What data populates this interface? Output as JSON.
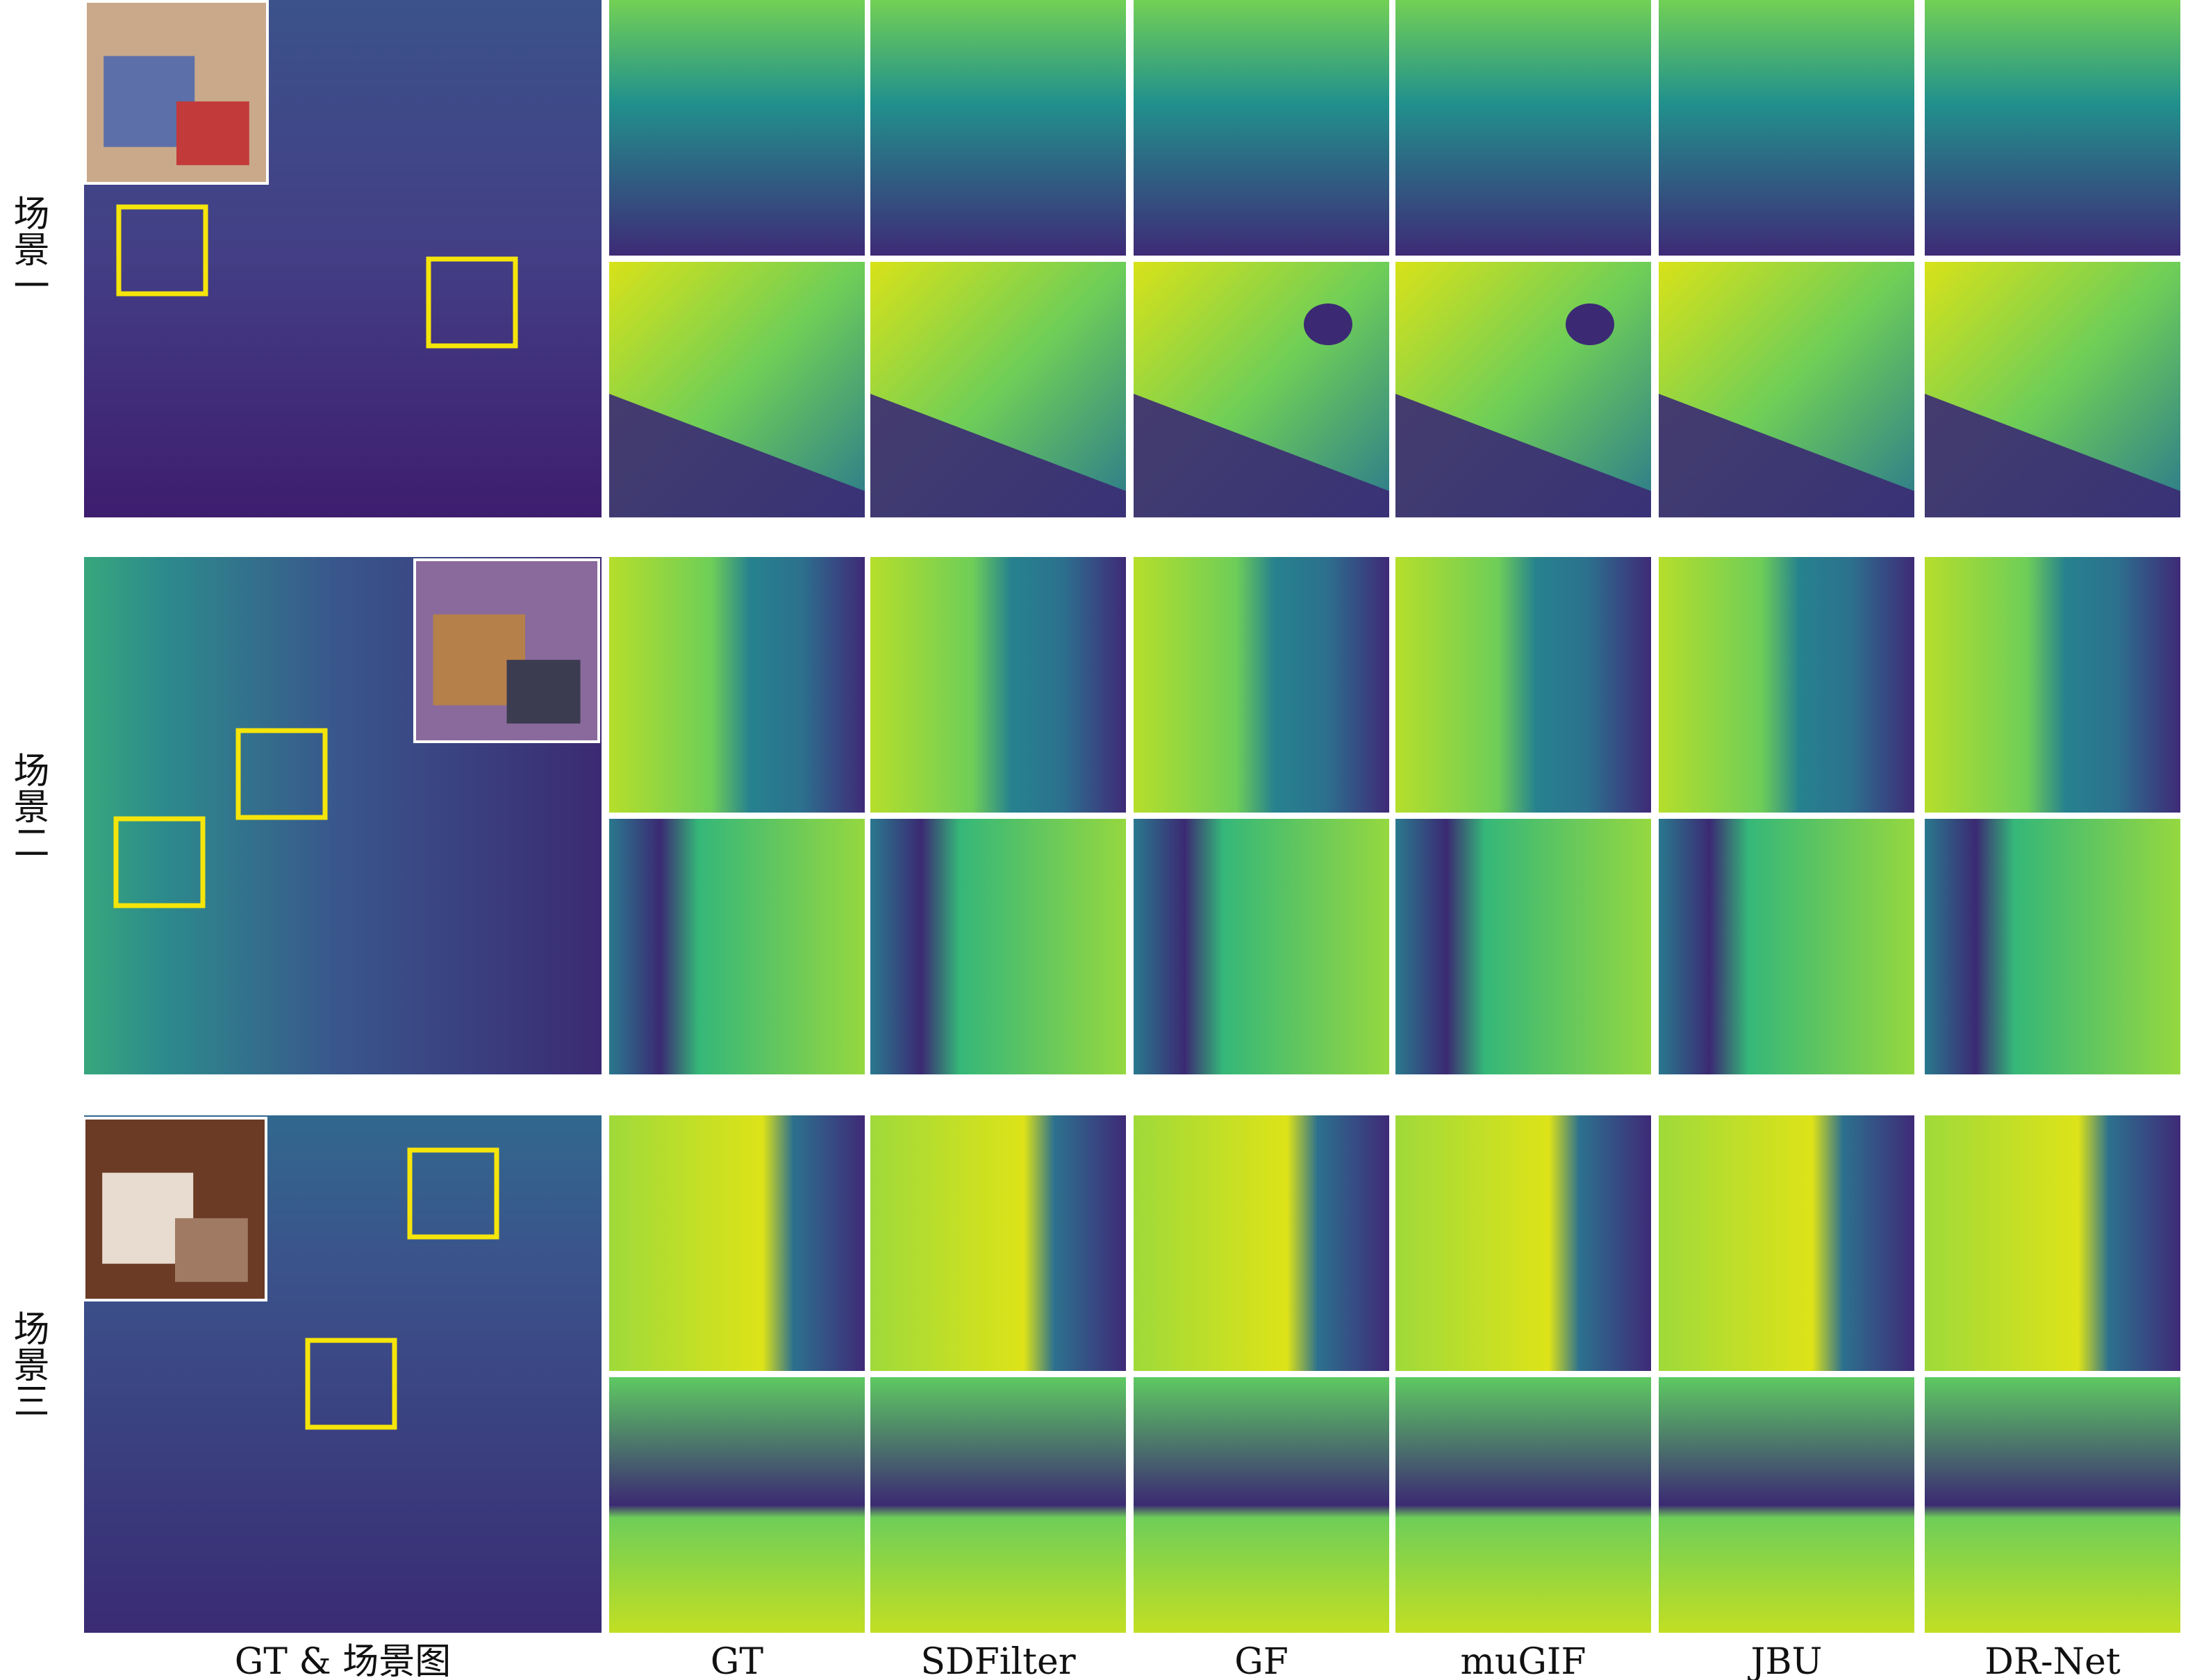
{
  "rows": [
    {
      "label": "场景一"
    },
    {
      "label": "场景二"
    },
    {
      "label": "场景三"
    }
  ],
  "columns": [
    "GT & 场景图",
    "GT",
    "SDFilter",
    "GF",
    "muGIF",
    "JBU",
    "DR-Net"
  ]
}
